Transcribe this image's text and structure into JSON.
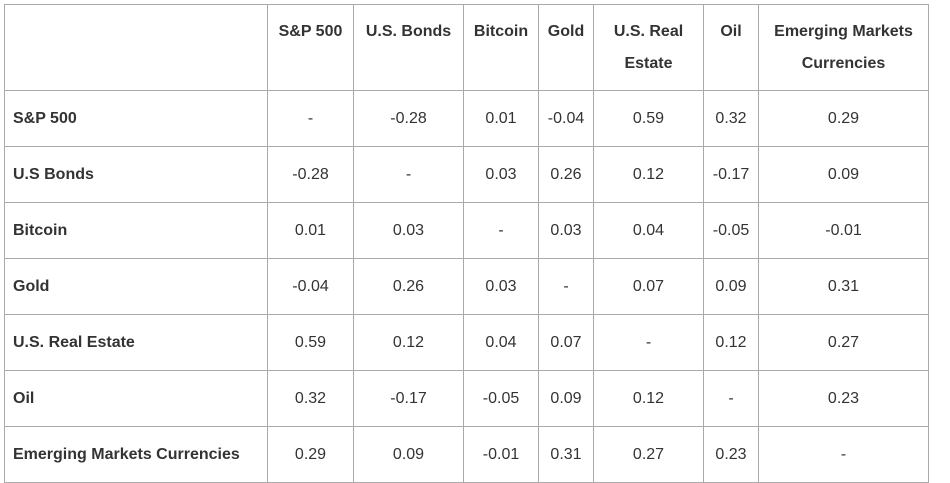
{
  "chart_data": {
    "type": "table",
    "columns": [
      "S&P 500",
      "U.S. Bonds",
      "Bitcoin",
      "Gold",
      "U.S. Real Estate",
      "Oil",
      "Emerging Markets Currencies"
    ],
    "rows": [
      {
        "label": "S&P 500",
        "values": [
          "-",
          "-0.28",
          "0.01",
          "-0.04",
          "0.59",
          "0.32",
          "0.29"
        ]
      },
      {
        "label": "U.S Bonds",
        "values": [
          "-0.28",
          "-",
          "0.03",
          "0.26",
          "0.12",
          "-0.17",
          "0.09"
        ]
      },
      {
        "label": "Bitcoin",
        "values": [
          "0.01",
          "0.03",
          "-",
          "0.03",
          "0.04",
          "-0.05",
          "-0.01"
        ]
      },
      {
        "label": "Gold",
        "values": [
          "-0.04",
          "0.26",
          "0.03",
          "-",
          "0.07",
          "0.09",
          "0.31"
        ]
      },
      {
        "label": "U.S. Real Estate",
        "values": [
          "0.59",
          "0.12",
          "0.04",
          "0.07",
          "-",
          "0.12",
          "0.27"
        ]
      },
      {
        "label": "Oil",
        "values": [
          "0.32",
          "-0.17",
          "-0.05",
          "0.09",
          "0.12",
          "-",
          "0.23"
        ]
      },
      {
        "label": "Emerging Markets Currencies",
        "values": [
          "0.29",
          "0.09",
          "-0.01",
          "0.31",
          "0.27",
          "0.23",
          "-"
        ]
      }
    ]
  }
}
